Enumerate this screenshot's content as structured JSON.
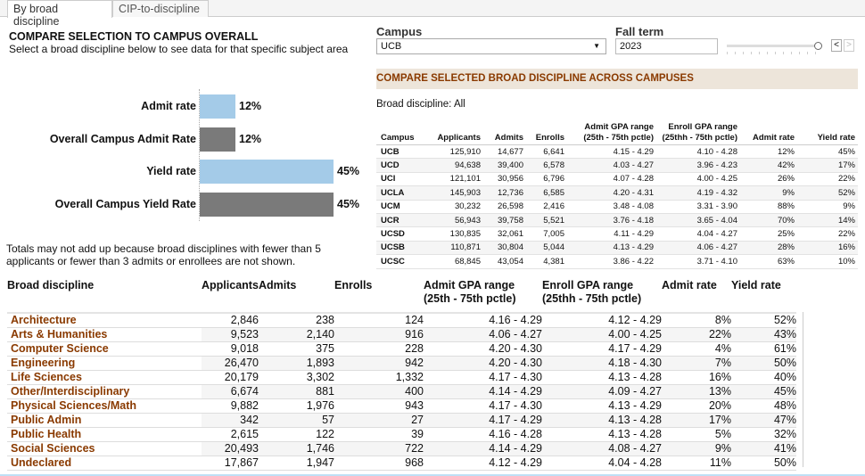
{
  "tabs": [
    {
      "label": "By broad discipline",
      "active": true
    },
    {
      "label": "CIP-to-discipline",
      "active": false
    }
  ],
  "overview": {
    "title": "COMPARE SELECTION TO CAMPUS OVERALL",
    "subtitle": "Select a broad discipline below to see data for that specific subject area",
    "bars": [
      {
        "label": "Admit rate",
        "value": 12,
        "display": "12%",
        "color": "#a4cbe8"
      },
      {
        "label": "Overall Campus Admit Rate",
        "value": 12,
        "display": "12%",
        "color": "#7a7a7a"
      },
      {
        "label": "Yield rate",
        "value": 45,
        "display": "45%",
        "color": "#a4cbe8"
      },
      {
        "label": "Overall Campus Yield Rate",
        "value": 45,
        "display": "45%",
        "color": "#7a7a7a"
      }
    ],
    "note": "Totals may not add up because broad disciplines with fewer than 5 applicants or fewer than 3 admits or enrollees are not shown."
  },
  "filters": {
    "campus_label": "Campus",
    "campus_value": "UCB",
    "term_label": "Fall term",
    "term_value": "2023",
    "slider_level": 1.0,
    "prev": "<",
    "next": ">"
  },
  "campus_compare": {
    "title": "COMPARE SELECTED BROAD DISCIPLINE ACROSS CAMPUSES",
    "discipline_label": "Broad discipline: All",
    "columns": [
      "Campus",
      "Applicants",
      "Admits",
      "Enrolls",
      "Admit GPA range\n(25th - 75th pctle)",
      "Enroll GPA range\n(25thh - 75th pctle)",
      "Admit rate",
      "Yield rate"
    ],
    "rows": [
      [
        "UCB",
        "125,910",
        "14,677",
        "6,641",
        "4.15 - 4.29",
        "4.10 - 4.28",
        "12%",
        "45%"
      ],
      [
        "UCD",
        "94,638",
        "39,400",
        "6,578",
        "4.03 - 4.27",
        "3.96 - 4.23",
        "42%",
        "17%"
      ],
      [
        "UCI",
        "121,101",
        "30,956",
        "6,796",
        "4.07 - 4.28",
        "4.00 - 4.25",
        "26%",
        "22%"
      ],
      [
        "UCLA",
        "145,903",
        "12,736",
        "6,585",
        "4.20 - 4.31",
        "4.19 - 4.32",
        "9%",
        "52%"
      ],
      [
        "UCM",
        "30,232",
        "26,598",
        "2,416",
        "3.48 - 4.08",
        "3.31 - 3.90",
        "88%",
        "9%"
      ],
      [
        "UCR",
        "56,943",
        "39,758",
        "5,521",
        "3.76 - 4.18",
        "3.65 - 4.04",
        "70%",
        "14%"
      ],
      [
        "UCSD",
        "130,835",
        "32,061",
        "7,005",
        "4.11 - 4.29",
        "4.04 - 4.27",
        "25%",
        "22%"
      ],
      [
        "UCSB",
        "110,871",
        "30,804",
        "5,044",
        "4.13 - 4.29",
        "4.06 - 4.27",
        "28%",
        "16%"
      ],
      [
        "UCSC",
        "68,845",
        "43,054",
        "4,381",
        "3.86 - 4.22",
        "3.71 - 4.10",
        "63%",
        "10%"
      ]
    ]
  },
  "disciplines": {
    "columns": [
      "Broad discipline",
      "Applicants",
      "Admits",
      "Enrolls",
      "Admit GPA range\n(25th - 75th pctle)",
      "Enroll GPA range\n(25thh - 75th pctle)",
      "Admit rate",
      "Yield rate"
    ],
    "rows": [
      [
        "Architecture",
        "2,846",
        "238",
        "124",
        "4.16 - 4.29",
        "4.12 - 4.29",
        "8%",
        "52%"
      ],
      [
        "Arts & Humanities",
        "9,523",
        "2,140",
        "916",
        "4.06 - 4.27",
        "4.00 - 4.25",
        "22%",
        "43%"
      ],
      [
        "Computer Science",
        "9,018",
        "375",
        "228",
        "4.20 - 4.30",
        "4.17 - 4.29",
        "4%",
        "61%"
      ],
      [
        "Engineering",
        "26,470",
        "1,893",
        "942",
        "4.20 - 4.30",
        "4.18 - 4.30",
        "7%",
        "50%"
      ],
      [
        "Life Sciences",
        "20,179",
        "3,302",
        "1,332",
        "4.17 - 4.30",
        "4.13 - 4.28",
        "16%",
        "40%"
      ],
      [
        "Other/Interdisciplinary",
        "6,674",
        "881",
        "400",
        "4.14 - 4.29",
        "4.09 - 4.27",
        "13%",
        "45%"
      ],
      [
        "Physical Sciences/Math",
        "9,882",
        "1,976",
        "943",
        "4.17 - 4.30",
        "4.13 - 4.29",
        "20%",
        "48%"
      ],
      [
        "Public Admin",
        "342",
        "57",
        "27",
        "4.17 - 4.29",
        "4.13 - 4.28",
        "17%",
        "47%"
      ],
      [
        "Public Health",
        "2,615",
        "122",
        "39",
        "4.16 - 4.28",
        "4.13 - 4.28",
        "5%",
        "32%"
      ],
      [
        "Social Sciences",
        "20,493",
        "1,746",
        "722",
        "4.14 - 4.29",
        "4.08 - 4.27",
        "9%",
        "41%"
      ],
      [
        "Undeclared",
        "17,867",
        "1,947",
        "968",
        "4.12 - 4.29",
        "4.04 - 4.28",
        "11%",
        "50%"
      ]
    ]
  }
}
